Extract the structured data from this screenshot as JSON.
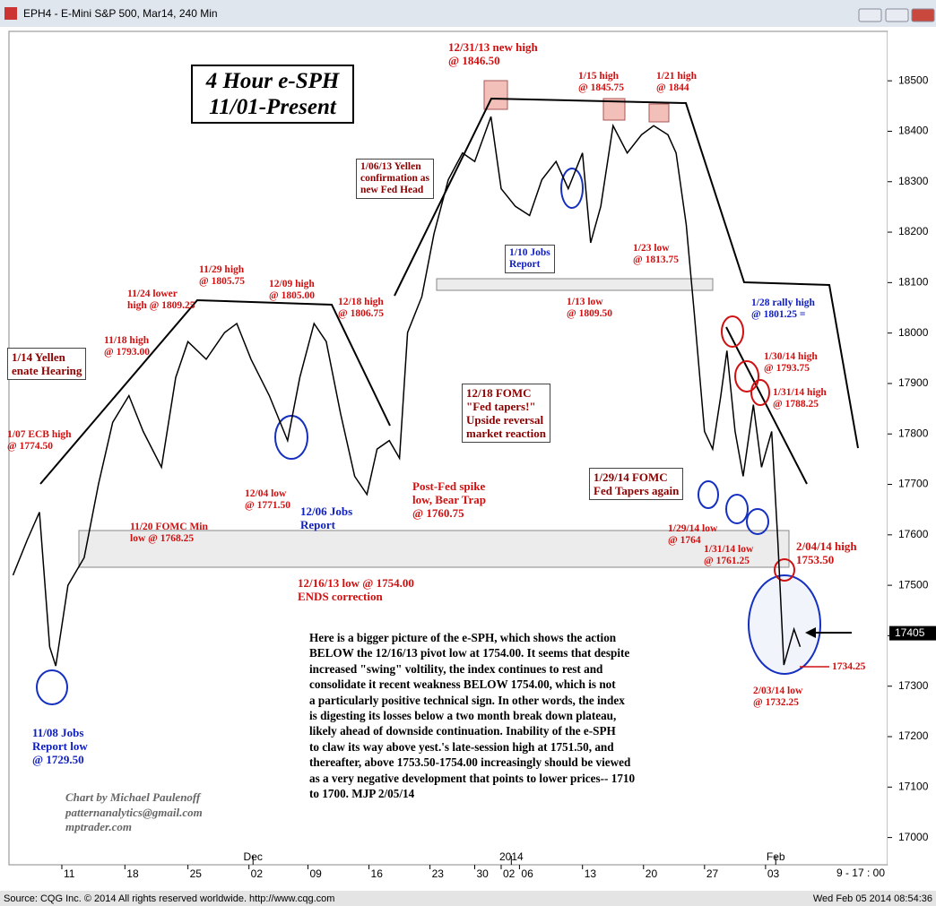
{
  "window_title": "EPH4 - E-Mini S&P 500, Mar14, 240 Min",
  "footer": {
    "source": "Source: CQG Inc. © 2014 All rights reserved worldwide. http://www.cqg.com",
    "timestamp": "Wed Feb 05 2014 08:54:36",
    "session": "9 - 17 : 00"
  },
  "chart_data": {
    "type": "line",
    "title_lines": [
      "4 Hour e-SPH",
      "11/01-Present"
    ],
    "x": [
      2,
      9,
      15,
      20,
      23,
      29,
      37,
      44,
      51,
      59,
      66,
      75,
      82,
      88,
      97,
      106,
      112,
      119,
      128,
      137,
      143,
      150,
      156,
      163,
      170,
      176,
      181,
      187,
      192,
      196,
      203,
      209,
      216,
      223,
      229,
      237,
      242,
      249,
      256,
      262,
      269,
      275,
      282,
      286,
      291,
      297,
      304,
      311,
      317,
      324,
      328,
      333,
      337,
      342,
      346,
      350,
      353,
      357,
      361,
      366,
      370,
      375,
      378,
      381,
      386,
      389
    ],
    "values": [
      17520,
      17590,
      17645,
      17378,
      17340,
      17500,
      17555,
      17700,
      17823,
      17876,
      17805,
      17734,
      17912,
      17983,
      17948,
      18001,
      18019,
      17948,
      17876,
      17787,
      17912,
      18019,
      17983,
      17841,
      17716,
      17680,
      17770,
      17787,
      17752,
      18001,
      18072,
      18197,
      18304,
      18357,
      18340,
      18429,
      18286,
      18251,
      18233,
      18304,
      18340,
      18286,
      18357,
      18179,
      18251,
      18411,
      18357,
      18393,
      18411,
      18393,
      18357,
      18215,
      18037,
      17805,
      17770,
      17876,
      17965,
      17805,
      17716,
      17858,
      17734,
      17805,
      17591,
      17342,
      17413,
      17378
    ],
    "color": "#000000",
    "xlim": [
      0,
      432
    ],
    "xticks": [
      {
        "value": 26,
        "label": "11"
      },
      {
        "value": 57,
        "label": "18"
      },
      {
        "value": 88,
        "label": "25"
      },
      {
        "value": 118,
        "label": "02"
      },
      {
        "value": 147,
        "label": "09"
      },
      {
        "value": 177,
        "label": "16"
      },
      {
        "value": 207,
        "label": "23"
      },
      {
        "value": 229,
        "label": "30"
      },
      {
        "value": 242,
        "label": "02"
      },
      {
        "value": 251,
        "label": "06"
      },
      {
        "value": 282,
        "label": "13"
      },
      {
        "value": 312,
        "label": "20"
      },
      {
        "value": 342,
        "label": "27"
      },
      {
        "value": 372,
        "label": "03"
      }
    ],
    "xticks_major": [
      {
        "value": 120,
        "label": "Dec"
      },
      {
        "value": 247,
        "label": "2014"
      },
      {
        "value": 377,
        "label": "Feb"
      }
    ],
    "ylim": [
      16946,
      18598
    ],
    "yticks": [
      17000,
      17100,
      17200,
      17300,
      17400,
      17500,
      17600,
      17700,
      17800,
      17900,
      18000,
      18100,
      18200,
      18300,
      18400,
      18500
    ],
    "grid": false,
    "last_price": 17405,
    "annotations": [
      {
        "lines": [
          "12/31/13 new high",
          "@ 1846.50"
        ]
      },
      {
        "lines": [
          "1/15 high",
          "@ 1845.75"
        ]
      },
      {
        "lines": [
          "1/21 high",
          "@ 1844"
        ]
      },
      {
        "lines": [
          "1/06/13 Yellen",
          "confirmation as",
          "new Fed Head"
        ]
      },
      {
        "lines": [
          "1/10 Jobs",
          "Report"
        ]
      },
      {
        "lines": [
          "1/23 low",
          "@ 1813.75"
        ]
      },
      {
        "lines": [
          "1/13 low",
          "@ 1809.50"
        ]
      },
      {
        "lines": [
          "1/28 rally high",
          "@ 1801.25 ="
        ]
      },
      {
        "lines": [
          "1/30/14 high",
          "@ 1793.75"
        ]
      },
      {
        "lines": [
          "1/31/14 high",
          "@ 1788.25"
        ]
      },
      {
        "lines": [
          "11/29 high",
          "@ 1805.75"
        ]
      },
      {
        "lines": [
          "12/09 high",
          "@ 1805.00"
        ]
      },
      {
        "lines": [
          "11/24 lower",
          "high @ 1809.25"
        ]
      },
      {
        "lines": [
          "12/18 high",
          "@ 1806.75"
        ]
      },
      {
        "lines": [
          "11/18 high",
          "@ 1793.00"
        ]
      },
      {
        "lines": [
          "1/14 Yellen",
          "enate Hearing"
        ]
      },
      {
        "lines": [
          "1/07 ECB high",
          "@ 1774.50"
        ]
      },
      {
        "lines": [
          "12/18 FOMC",
          "\"Fed tapers!\"",
          "Upside reversal",
          "market reaction"
        ]
      },
      {
        "lines": [
          "1/29/14 FOMC",
          "Fed Tapers again"
        ]
      },
      {
        "lines": [
          "12/04 low",
          "@ 1771.50"
        ]
      },
      {
        "lines": [
          "12/06 Jobs",
          "Report"
        ]
      },
      {
        "lines": [
          "Post-Fed spike",
          "low, Bear Trap",
          "@ 1760.75"
        ]
      },
      {
        "lines": [
          "11/20 FOMC Min",
          "low @ 1768.25"
        ]
      },
      {
        "lines": [
          "1/29/14 low",
          "@ 1764"
        ]
      },
      {
        "lines": [
          "1/31/14 low",
          "@ 1761.25"
        ]
      },
      {
        "lines": [
          "2/04/14 high",
          "1753.50"
        ]
      },
      {
        "lines": [
          "12/16/13 low @ 1754.00",
          "ENDS correction"
        ]
      },
      {
        "lines": [
          "1734.25"
        ]
      },
      {
        "lines": [
          "2/03/14 low",
          "@ 1732.25"
        ]
      },
      {
        "lines": [
          "11/08 Jobs",
          "Report low",
          "@ 1729.50"
        ]
      }
    ],
    "commentary": [
      "Here is a bigger picture of the e-SPH, which shows the action",
      "BELOW the 12/16/13 pivot low at 1754.00. It seems that despite",
      "increased \"swing\" voltility, the index continues to rest and",
      "consolidate it recent weakness BELOW 1754.00, which is not",
      "a particularly positive technical sign. In other words, the index",
      "is digesting its losses below a two month break down plateau,",
      "likely ahead of downside continuation.  Inability of the e-SPH",
      "to claw its way above yest.'s late-session high at 1751.50, and",
      "thereafter, above 1753.50-1754.00 increasingly should be viewed",
      "as a very negative development that points to lower prices-- 1710",
      "to 1700.  MJP  2/05/14"
    ],
    "credits": [
      "Chart by Michael Paulenoff",
      "patternanalytics@gmail.com",
      "mptrader.com"
    ]
  }
}
